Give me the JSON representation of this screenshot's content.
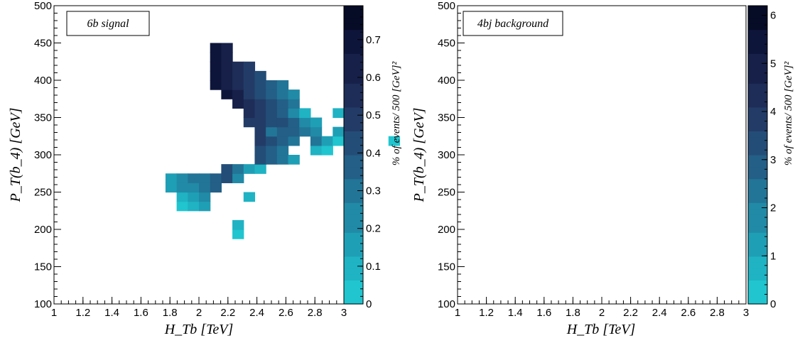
{
  "chart_data": [
    {
      "type": "heatmap",
      "title": "6b signal",
      "xlabel": "H_Tb [TeV]",
      "ylabel": "P_T(b_4) [GeV]",
      "colorbar_label": "% of events/ 500 [GeV]²",
      "xlim": [
        1,
        3
      ],
      "ylim": [
        100,
        500
      ],
      "x_bins": 26,
      "y_bins": 32,
      "x_ticks": [
        "1",
        "1.2",
        "1.4",
        "1.6",
        "1.8",
        "2",
        "2.2",
        "2.4",
        "2.6",
        "2.8",
        "3"
      ],
      "y_ticks": [
        "100",
        "150",
        "200",
        "250",
        "300",
        "350",
        "400",
        "450",
        "500"
      ],
      "z_range": [
        0,
        0.79
      ],
      "z_ticks": [
        "0",
        "0.1",
        "0.2",
        "0.3",
        "0.4",
        "0.5",
        "0.6",
        "0.7"
      ],
      "z_exponent": "",
      "rows": [
        "...............",
        ".....",
        "......",
        "........................7.",
        ".....................7..",
        "...................7.",
        ".................8..........",
        "..............89a....9..",
        "..........9.....b...........",
        "...........9...............",
        "...........abc............",
        "...........bcd...b.",
        "..........cddef.",
        "..........cdeefgd.",
        "...............gecb.",
        "..................gfec...",
        "..................gfe..ba.9",
        "..................hgfe.eca....a",
        "..................heffed.ca.",
        ".................hhggfdc..a",
        ".................ihgfdb..b",
        "................jihgfe.",
        "...............kjhgfed",
        "..............kjihgfe.",
        "..............kjihg",
        "..............kjih",
        "..............kj",
        "..............kj",
        ".............",
        "..........",
        ".......",
        "...."
      ]
    },
    {
      "type": "heatmap",
      "title": "4bj background",
      "xlabel": "H_Tb [TeV]",
      "ylabel": "P_T(b_4) [GeV]",
      "colorbar_label": "% of events/ 500 [GeV]²",
      "xlim": [
        1,
        3
      ],
      "ylim": [
        100,
        500
      ],
      "x_bins": 26,
      "y_bins": 32,
      "x_ticks": [
        "1",
        "1.2",
        "1.4",
        "1.6",
        "1.8",
        "2",
        "2.2",
        "2.4",
        "2.6",
        "2.8",
        "3"
      ],
      "y_ticks": [
        "100",
        "150",
        "200",
        "250",
        "300",
        "350",
        "400",
        "450",
        "500"
      ],
      "z_range": [
        0,
        6.2
      ],
      "z_ticks": [
        "0",
        "1",
        "2",
        "3",
        "4",
        "5",
        "6"
      ],
      "z_exponent": "",
      "rows": [
        "..",
        "",
        "",
        "",
        "",
        "",
        "",
        "",
        "",
        "",
        "",
        "",
        "",
        "",
        "",
        "",
        "",
        "",
        "",
        "",
        "",
        "",
        "",
        "",
        "",
        "",
        "",
        "",
        "",
        "",
        "",
        ""
      ]
    }
  ]
}
